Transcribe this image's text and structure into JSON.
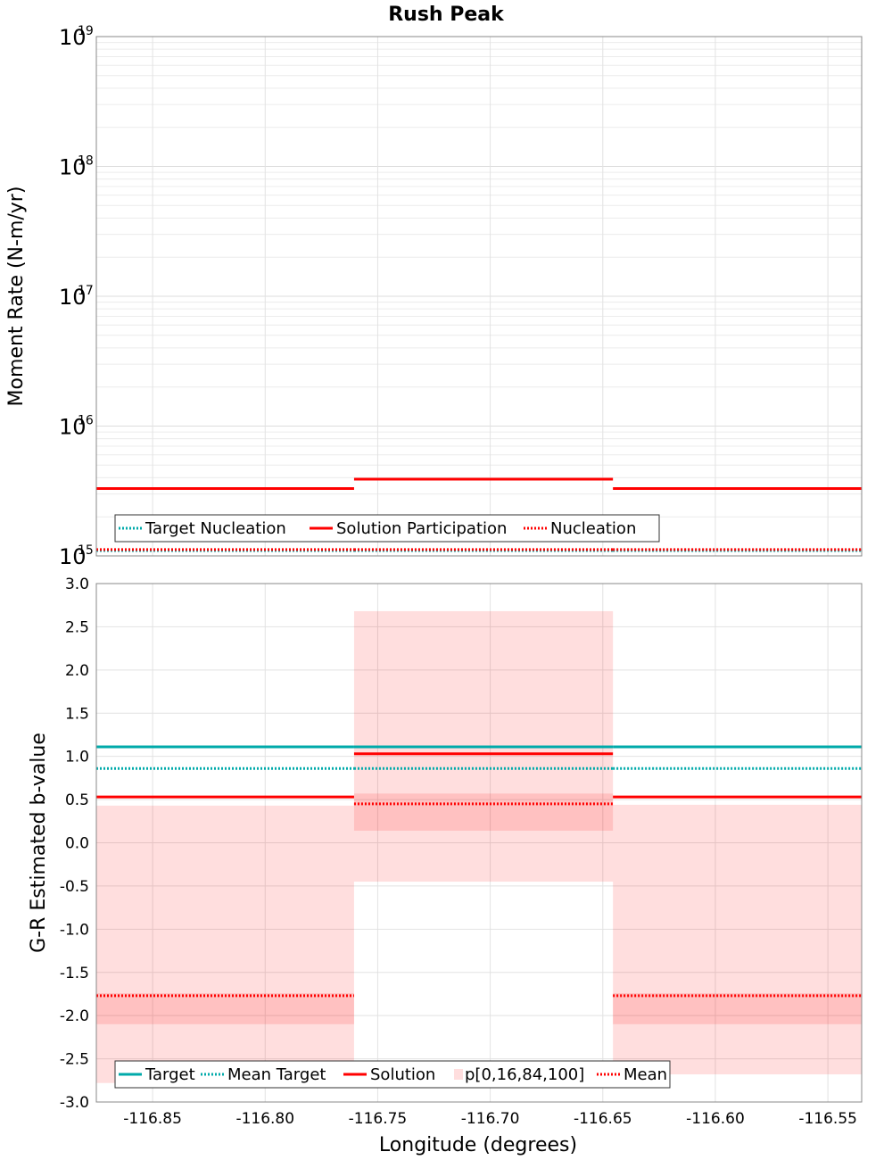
{
  "chart_data": {
    "title": "Rush Peak",
    "xlabel": "Longitude (degrees)",
    "xlim": [
      -116.875,
      -116.535
    ],
    "xticks": [
      -116.85,
      -116.8,
      -116.75,
      -116.7,
      -116.65,
      -116.6,
      -116.55
    ],
    "xtick_labels": [
      "-116.85",
      "-116.80",
      "-116.75",
      "-116.70",
      "-116.65",
      "-116.60",
      "-116.55"
    ],
    "grid": true,
    "bin_edges": [
      -116.875,
      -116.7605,
      -116.6455,
      -116.535
    ],
    "panels": [
      {
        "type": "line",
        "scale": "log",
        "ylabel": "Moment Rate (N-m/yr)",
        "ylim": [
          1000000000000000.0,
          1e+19
        ],
        "yticks": [
          {
            "base": "10",
            "exp": "15"
          },
          {
            "base": "10",
            "exp": "16"
          },
          {
            "base": "10",
            "exp": "17"
          },
          {
            "base": "10",
            "exp": "18"
          },
          {
            "base": "10",
            "exp": "19"
          }
        ],
        "series": [
          {
            "name": "Target Nucleation",
            "style": "dotted",
            "color": "#00aaaa",
            "values": [
              1100000000000000.0,
              1100000000000000.0,
              1100000000000000.0
            ]
          },
          {
            "name": "Solution Participation",
            "style": "solid",
            "color": "#ff0000",
            "values": [
              3300000000000000.0,
              3900000000000000.0,
              3300000000000000.0
            ]
          },
          {
            "name": "Nucleation",
            "style": "dotted",
            "color": "#ff0000",
            "values": [
              1120000000000000.0,
              1120000000000000.0,
              1120000000000000.0
            ]
          }
        ],
        "legend": {
          "placement": "bottom-left",
          "entries": [
            {
              "label": "Target Nucleation",
              "kind": "dotted",
              "color": "#00aaaa"
            },
            {
              "label": "Solution Participation",
              "kind": "solid",
              "color": "#ff0000"
            },
            {
              "label": "Nucleation",
              "kind": "dotted",
              "color": "#ff0000"
            }
          ]
        }
      },
      {
        "type": "line",
        "scale": "linear",
        "ylabel": "G-R Estimated b-value",
        "ylim": [
          -3.0,
          3.0
        ],
        "yticks": [
          -3.0,
          -2.5,
          -2.0,
          -1.5,
          -1.0,
          -0.5,
          0.0,
          0.5,
          1.0,
          1.5,
          2.0,
          2.5,
          3.0
        ],
        "ytick_labels": [
          "-3.0",
          "-2.5",
          "-2.0",
          "-1.5",
          "-1.0",
          "-0.5",
          "0.0",
          "0.5",
          "1.0",
          "1.5",
          "2.0",
          "2.5",
          "3.0"
        ],
        "bands": {
          "name": "p[0,16,84,100]",
          "color": "#ff0000",
          "outer": [
            [
              -2.78,
              0.43
            ],
            [
              -0.45,
              2.68
            ],
            [
              -2.68,
              0.44
            ]
          ],
          "inner": [
            [
              -2.1,
              -1.74
            ],
            [
              0.14,
              0.57
            ],
            [
              -2.1,
              -1.74
            ]
          ]
        },
        "series": [
          {
            "name": "Target",
            "style": "solid",
            "color": "#00aaaa",
            "values": [
              1.11,
              1.11,
              1.11
            ]
          },
          {
            "name": "Mean Target",
            "style": "dotted",
            "color": "#00aaaa",
            "values": [
              0.86,
              0.86,
              0.86
            ]
          },
          {
            "name": "Solution",
            "style": "solid",
            "color": "#ff0000",
            "values": [
              0.53,
              1.03,
              0.53
            ]
          },
          {
            "name": "Mean",
            "style": "dotted",
            "color": "#ff0000",
            "values": [
              -1.77,
              0.45,
              -1.77
            ]
          }
        ],
        "legend": {
          "placement": "bottom-left",
          "entries": [
            {
              "label": "Target",
              "kind": "solid",
              "color": "#00aaaa"
            },
            {
              "label": "Mean Target",
              "kind": "dotted",
              "color": "#00aaaa"
            },
            {
              "label": "Solution",
              "kind": "solid",
              "color": "#ff0000"
            },
            {
              "label": "p[0,16,84,100]",
              "kind": "band",
              "color": "#ff0000"
            },
            {
              "label": "Mean",
              "kind": "dotted",
              "color": "#ff0000"
            }
          ]
        }
      }
    ]
  }
}
